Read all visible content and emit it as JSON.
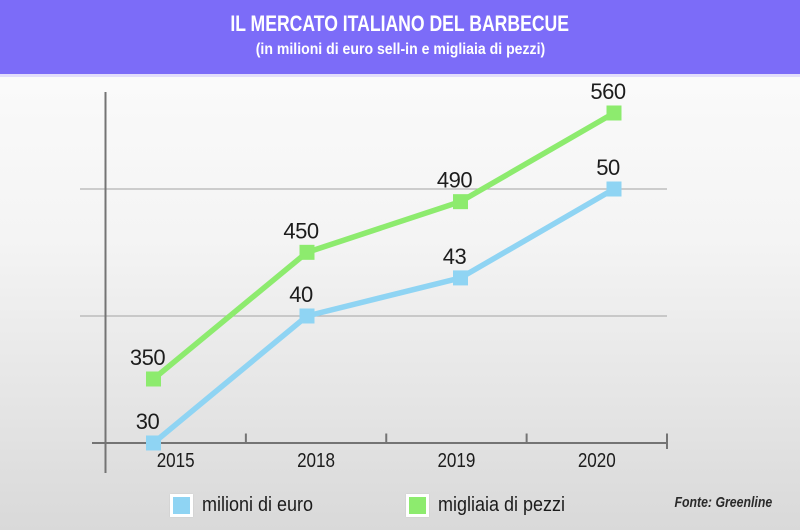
{
  "header": {
    "title": "IL MERCATO ITALIANO DEL BARBECUE",
    "subtitle": "(in milioni di euro sell-in e migliaia di pezzi)",
    "background_color": "#7c6cf8",
    "text_color": "#ffffff"
  },
  "chart_data": {
    "type": "line",
    "title": "IL MERCATO ITALIANO DEL BARBECUE",
    "subtitle": "(in milioni di euro sell-in e migliaia di pezzi)",
    "categories": [
      "2015",
      "2018",
      "2019",
      "2020"
    ],
    "series": [
      {
        "name": "milioni di euro",
        "color": "#8fd4f3",
        "values": [
          30,
          40,
          43,
          50
        ],
        "data_labels": [
          "30",
          "40",
          "43",
          "50"
        ]
      },
      {
        "name": "migliaia di pezzi",
        "color": "#8deb6e",
        "values": [
          350,
          450,
          490,
          560
        ],
        "data_labels": [
          "350",
          "450",
          "490",
          "560"
        ]
      }
    ],
    "xlabel": "",
    "ylabel": "",
    "grid": true,
    "gridlines_at_series1_values": [
      40,
      50
    ],
    "legend_position": "bottom",
    "marker": "square",
    "axis_color": "#747474",
    "grid_color": "#b3b3b3",
    "label_color": "#1c1c1c"
  },
  "legend": {
    "items": [
      {
        "label": "milioni di euro",
        "color": "#8fd4f3"
      },
      {
        "label": "migliaia di pezzi",
        "color": "#8deb6e"
      }
    ]
  },
  "source": "Fonte: Greenline"
}
